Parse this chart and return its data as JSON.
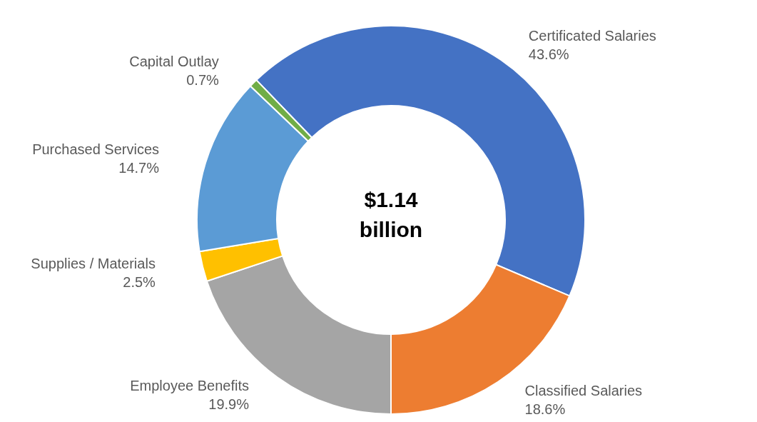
{
  "chart_data": {
    "type": "donut",
    "categories": [
      "Certificated Salaries",
      "Classified Salaries",
      "Employee Benefits",
      "Supplies / Materials",
      "Purchased Services",
      "Capital Outlay"
    ],
    "values": [
      43.6,
      18.6,
      19.9,
      2.5,
      14.7,
      0.7
    ],
    "colors": [
      "#4472c4",
      "#ed7d31",
      "#a5a5a5",
      "#ffc000",
      "#5b9bd5",
      "#70ad47"
    ],
    "value_labels": [
      "43.6%",
      "18.6%",
      "19.9%",
      "2.5%",
      "14.7%",
      "0.7%"
    ],
    "annotations": [
      "$1.14 billion"
    ],
    "legend": false
  }
}
